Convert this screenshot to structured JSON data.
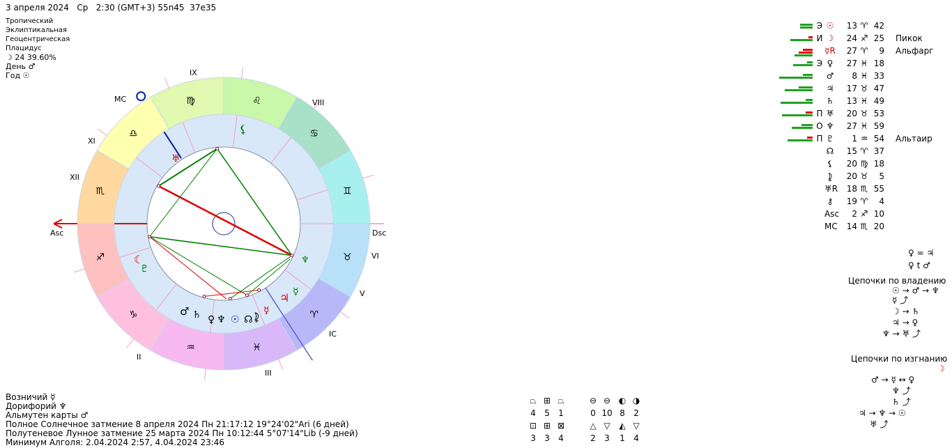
{
  "header": {
    "date": "3 апреля 2024",
    "weekday": "Ср",
    "time": "2:30 (GMT+3)",
    "lat": "55n45",
    "lon": "37e35"
  },
  "settings": {
    "zodiac": "Тропический",
    "coords": "Эклиптикальная",
    "center": "Геоцентрическая",
    "houses": "Плацидус",
    "moon_day": "☽ 24 39.60%",
    "day_ruler": "День ♂",
    "year_ruler": "Год ☉"
  },
  "chart_labels": {
    "asc": "Asc",
    "dsc": "Dsc",
    "mc": "MC",
    "ic": "IC",
    "houses": [
      "IX",
      "VIII",
      "XI",
      "XII",
      "II",
      "III",
      "VI",
      "V"
    ]
  },
  "colors": {
    "zodiac_ring": [
      "#a8f0f0",
      "#a8e0c8",
      "#c8f8a8",
      "#e0f8b0",
      "#ffffb0",
      "#ffd8a0",
      "#ffc0c0",
      "#ffc0e0",
      "#f8b8f0",
      "#d8b8f8",
      "#b8b8f8",
      "#b8e0f8"
    ],
    "red_aspect": "#e00000",
    "green_aspect": "#008000",
    "inner_ring": "#d8e8f8"
  },
  "planets": [
    {
      "dign": "Э",
      "glyph": "☉",
      "deg": "13",
      "sign": "♈",
      "min": "42",
      "star": "",
      "bars": [
        {
          "c": "#20a020",
          "w": 18
        },
        {
          "c": "#20a020",
          "w": 18
        }
      ]
    },
    {
      "dign": "И",
      "glyph": "☽",
      "deg": "24",
      "sign": "♐",
      "min": "25",
      "star": "Пикок",
      "bars": [
        {
          "c": "#e00000",
          "w": 6
        },
        {
          "c": "#20a020",
          "w": 32
        }
      ]
    },
    {
      "dign": "",
      "glyph": "☿R",
      "deg": "27",
      "sign": "♈",
      "min": "9",
      "star": "Альфарг",
      "bars": [
        {
          "c": "#e00000",
          "w": 14
        },
        {
          "c": "#e00000",
          "w": 20
        },
        {
          "c": "#20a020",
          "w": 26
        }
      ]
    },
    {
      "dign": "Э",
      "glyph": "♀",
      "deg": "27",
      "sign": "♓",
      "min": "18",
      "star": "",
      "bars": [
        {
          "c": "#20a020",
          "w": 8
        },
        {
          "c": "#20a020",
          "w": 28
        }
      ]
    },
    {
      "dign": "",
      "glyph": "♂",
      "deg": "8",
      "sign": "♓",
      "min": "33",
      "star": "",
      "bars": [
        {
          "c": "#20a020",
          "w": 14
        },
        {
          "c": "#20a020",
          "w": 48
        }
      ]
    },
    {
      "dign": "",
      "glyph": "♃",
      "deg": "17",
      "sign": "♉",
      "min": "47",
      "star": "",
      "bars": [
        {
          "c": "#20a020",
          "w": 20
        },
        {
          "c": "#20a020",
          "w": 40
        }
      ]
    },
    {
      "dign": "",
      "glyph": "♄",
      "deg": "13",
      "sign": "♓",
      "min": "49",
      "star": "",
      "bars": [
        {
          "c": "#20a020",
          "w": 10
        },
        {
          "c": "#20a020",
          "w": 46
        }
      ]
    },
    {
      "dign": "П",
      "glyph": "♅",
      "deg": "20",
      "sign": "♉",
      "min": "53",
      "star": "",
      "bars": [
        {
          "c": "#e00000",
          "w": 10
        },
        {
          "c": "#20a020",
          "w": 44
        }
      ]
    },
    {
      "dign": "О",
      "glyph": "♆",
      "deg": "27",
      "sign": "♓",
      "min": "59",
      "star": "",
      "bars": [
        {
          "c": "#20a020",
          "w": 16
        },
        {
          "c": "#20a020",
          "w": 30
        }
      ]
    },
    {
      "dign": "П",
      "glyph": "♇",
      "deg": "1",
      "sign": "♒",
      "min": "54",
      "star": "Альтаир",
      "bars": [
        {
          "c": "#e00000",
          "w": 8
        },
        {
          "c": "#20a020",
          "w": 36
        }
      ]
    },
    {
      "dign": "",
      "glyph": "☊",
      "deg": "15",
      "sign": "♈",
      "min": "37",
      "star": "",
      "bars": []
    },
    {
      "dign": "",
      "glyph": "⚸",
      "deg": "20",
      "sign": "♍",
      "min": "18",
      "star": "",
      "bars": []
    },
    {
      "dign": "",
      "glyph": "⯝",
      "deg": "20",
      "sign": "♉",
      "min": "5",
      "star": "",
      "bars": []
    },
    {
      "dign": "",
      "glyph": "♅R",
      "deg": "18",
      "sign": "♏",
      "min": "55",
      "star": "",
      "bars": []
    },
    {
      "dign": "",
      "glyph": "⚷",
      "deg": "19",
      "sign": "♈",
      "min": "4",
      "star": "",
      "bars": []
    },
    {
      "dign": "",
      "glyph": "Asc",
      "deg": "2",
      "sign": "♐",
      "min": "10",
      "star": "",
      "bars": []
    },
    {
      "dign": "",
      "glyph": "MC",
      "deg": "14",
      "sign": "♏",
      "min": "20",
      "star": "",
      "bars": []
    }
  ],
  "receptions": {
    "line1": "♀ = ♃",
    "line2": "♀ t ♂",
    "ownership_title": "Цепочки по владению",
    "own_1": "☉ → ♂ → ♆",
    "own_2": "☿ ⤴",
    "own_3": "☽ → ♄",
    "own_4": "♃ → ♀",
    "own_5": "♆ → ♅ ⤴",
    "exile_title": "Цепочки по изгнанию",
    "exile_moon": "☽",
    "exile_1": "♂ → ☿ ↔ ♀",
    "exile_2": "♆ ⤴",
    "exile_3": "♄ ⤴",
    "exile_4": "♃ → ♆ → ☉",
    "exile_5": "♅ ⤴"
  },
  "bottom": {
    "vozn": "Возничий ☿",
    "dorif": "Дорифорий ♆",
    "almuten": "Альмутен карты ♂",
    "solar_eclipse": "Полное Солнечное затмение 8 апреля 2024 Пн 21:17:12 19°24'02\"Ari (6 дней)",
    "lunar_eclipse": "Полутеневое Лунное затмение 25 марта 2024 Пн 10:12:44  5°07'14\"Lib (-9 дней)",
    "algol": "Минимум Алголя: 2.04.2024  2:57,  4.04.2024 23:46"
  },
  "figures_top": [
    {
      "g": "⏢",
      "n": "4"
    },
    {
      "g": "⊞",
      "n": "5"
    },
    {
      "g": "⏢",
      "n": "1"
    },
    {
      "g": "⊖",
      "n": "0"
    },
    {
      "g": "⊖",
      "n": "10"
    },
    {
      "g": "◐",
      "n": "8"
    },
    {
      "g": "◑",
      "n": "2"
    }
  ],
  "figures_bottom": [
    {
      "g": "⊡",
      "n": "3"
    },
    {
      "g": "⊞",
      "n": "3"
    },
    {
      "g": "⊠",
      "n": "4"
    },
    {
      "g": "△",
      "n": "2"
    },
    {
      "g": "▽",
      "n": "3"
    },
    {
      "g": "◭",
      "n": "1"
    },
    {
      "g": "▽",
      "n": "4"
    }
  ]
}
